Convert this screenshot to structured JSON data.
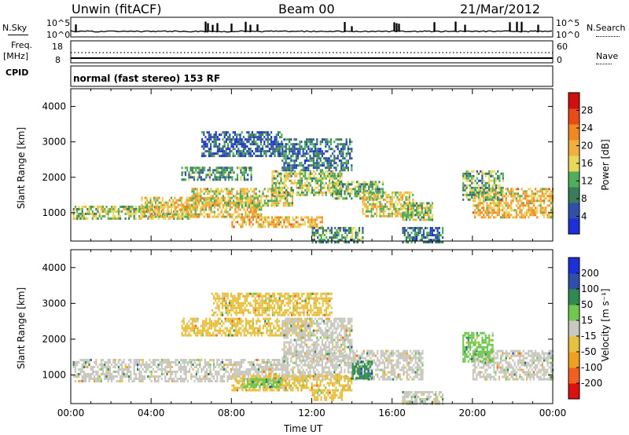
{
  "header": {
    "station": "Unwin (fitACF)",
    "beam": "Beam 00",
    "date": "21/Mar/2012"
  },
  "summary": {
    "nsky_label": "N.Sky",
    "nsky_ticks": [
      "10^5",
      "10^0"
    ],
    "nsearch_label": "N.Search",
    "freq_label": "Freq.",
    "freq_unit": "[MHz]",
    "freq_ticks": [
      "18",
      "8"
    ],
    "nave_label": "Nave",
    "nave_ticks": [
      "60",
      "0"
    ],
    "cpid_label": "CPID",
    "cpid_text": "normal (fast stereo) 153 RF"
  },
  "colors": {
    "power": [
      "#1d2fd6",
      "#2f4fa8",
      "#3a7d5a",
      "#4fae5a",
      "#e8d85a",
      "#f0b040",
      "#f08a20",
      "#e84a18",
      "#d01010"
    ],
    "velocity": [
      "#dd1010",
      "#f06020",
      "#f0a020",
      "#e8c040",
      "#c8c8c0",
      "#70c850",
      "#2f8a50",
      "#2f4fa8",
      "#1d2fd6"
    ]
  },
  "chart_data": [
    {
      "type": "heatmap",
      "panel": "power",
      "ylabel": "Slant Range [km]",
      "ylim": [
        200,
        4500
      ],
      "yticks": [
        "1000",
        "2000",
        "3000",
        "4000"
      ],
      "xlim": [
        0,
        24
      ],
      "colorbar": {
        "label": "Power [dB]",
        "ticks": [
          "4",
          "8",
          "12",
          "16",
          "20",
          "24",
          "28"
        ],
        "range": [
          0,
          32
        ]
      },
      "regions": [
        {
          "t0": 0.1,
          "t1": 6.0,
          "r0": 850,
          "r1": 1200,
          "value": 14
        },
        {
          "t0": 3.5,
          "t1": 9.5,
          "r0": 900,
          "r1": 1450,
          "value": 18
        },
        {
          "t0": 6.0,
          "t1": 11.0,
          "r0": 1200,
          "r1": 1700,
          "value": 16
        },
        {
          "t0": 10.0,
          "t1": 13.5,
          "r0": 1500,
          "r1": 2200,
          "value": 15
        },
        {
          "t0": 13.0,
          "t1": 15.5,
          "r0": 1400,
          "r1": 1900,
          "value": 12
        },
        {
          "t0": 14.5,
          "t1": 17.0,
          "r0": 900,
          "r1": 1600,
          "value": 17
        },
        {
          "t0": 16.5,
          "t1": 18.0,
          "r0": 800,
          "r1": 1300,
          "value": 14
        },
        {
          "t0": 20.0,
          "t1": 24.0,
          "r0": 900,
          "r1": 1700,
          "value": 19
        },
        {
          "t0": 19.5,
          "t1": 21.5,
          "r0": 1400,
          "r1": 2200,
          "value": 12
        },
        {
          "t0": 8.0,
          "t1": 12.5,
          "r0": 600,
          "r1": 900,
          "value": 20
        },
        {
          "t0": 5.5,
          "t1": 9.0,
          "r0": 1950,
          "r1": 2300,
          "value": 10
        },
        {
          "t0": 6.5,
          "t1": 10.5,
          "r0": 2600,
          "r1": 3300,
          "value": 6
        },
        {
          "t0": 10.5,
          "t1": 14.0,
          "r0": 2200,
          "r1": 3100,
          "value": 8
        },
        {
          "t0": 12.0,
          "t1": 14.5,
          "r0": 200,
          "r1": 600,
          "value": 10
        },
        {
          "t0": 16.5,
          "t1": 18.5,
          "r0": 200,
          "r1": 600,
          "value": 8
        }
      ]
    },
    {
      "type": "heatmap",
      "panel": "velocity",
      "ylabel": "Slant Range [km]",
      "xlabel": "Time UT",
      "ylim": [
        200,
        4500
      ],
      "yticks": [
        "1000",
        "2000",
        "3000",
        "4000"
      ],
      "xlim": [
        0,
        24
      ],
      "xticks": [
        "00:00",
        "04:00",
        "08:00",
        "12:00",
        "16:00",
        "20:00",
        "00:00"
      ],
      "colorbar": {
        "label": "Velocity [m s⁻¹]",
        "ticks": [
          "200",
          "100",
          "50",
          "15",
          "-15",
          "-50",
          "-100",
          "-200"
        ],
        "range": [
          -250,
          250
        ]
      },
      "regions": [
        {
          "t0": 0.1,
          "t1": 10.5,
          "r0": 850,
          "r1": 1450,
          "value": 0
        },
        {
          "t0": 10.5,
          "t1": 17.5,
          "r0": 900,
          "r1": 1700,
          "value": -5
        },
        {
          "t0": 14.0,
          "t1": 15.0,
          "r0": 900,
          "r1": 1400,
          "value": 120
        },
        {
          "t0": 5.5,
          "t1": 12.0,
          "r0": 2100,
          "r1": 2600,
          "value": -40
        },
        {
          "t0": 8.0,
          "t1": 14.0,
          "r0": 600,
          "r1": 1000,
          "value": -50
        },
        {
          "t0": 8.5,
          "t1": 10.5,
          "r0": 650,
          "r1": 900,
          "value": 40
        },
        {
          "t0": 10.5,
          "t1": 14.0,
          "r0": 1400,
          "r1": 2600,
          "value": -5
        },
        {
          "t0": 20.0,
          "t1": 24.0,
          "r0": 900,
          "r1": 1700,
          "value": 5
        },
        {
          "t0": 19.5,
          "t1": 21.0,
          "r0": 1400,
          "r1": 2200,
          "value": 40
        },
        {
          "t0": 7.0,
          "t1": 13.0,
          "r0": 2700,
          "r1": 3300,
          "value": -30
        },
        {
          "t0": 12.0,
          "t1": 13.5,
          "r0": 300,
          "r1": 600,
          "value": -60
        },
        {
          "t0": 16.5,
          "t1": 18.5,
          "r0": 200,
          "r1": 550,
          "value": -20
        }
      ]
    }
  ]
}
